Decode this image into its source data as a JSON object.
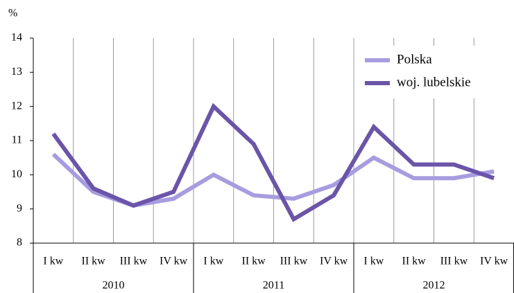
{
  "chart_data": {
    "type": "line",
    "y_label": "%",
    "categories": [
      "I kw",
      "II kw",
      "III kw",
      "IV kw",
      "I kw",
      "II kw",
      "III kw",
      "IV kw",
      "I kw",
      "II kw",
      "III kw",
      "IV kw"
    ],
    "years": [
      "2010",
      "2011",
      "2012"
    ],
    "series": [
      {
        "name": "Polska",
        "color": "#a89ce0",
        "values": [
          10.6,
          9.5,
          9.1,
          9.3,
          10.0,
          9.4,
          9.3,
          9.7,
          10.5,
          9.9,
          9.9,
          10.1
        ]
      },
      {
        "name": "woj. lubelskie",
        "color": "#6a55a8",
        "values": [
          11.2,
          9.6,
          9.1,
          9.5,
          12.0,
          10.9,
          8.7,
          9.4,
          11.4,
          10.3,
          10.3,
          9.9
        ]
      }
    ],
    "ylim": [
      8,
      14
    ],
    "yticks": [
      8,
      9,
      10,
      11,
      12,
      13,
      14
    ],
    "grid": true,
    "legend": "top-right"
  }
}
